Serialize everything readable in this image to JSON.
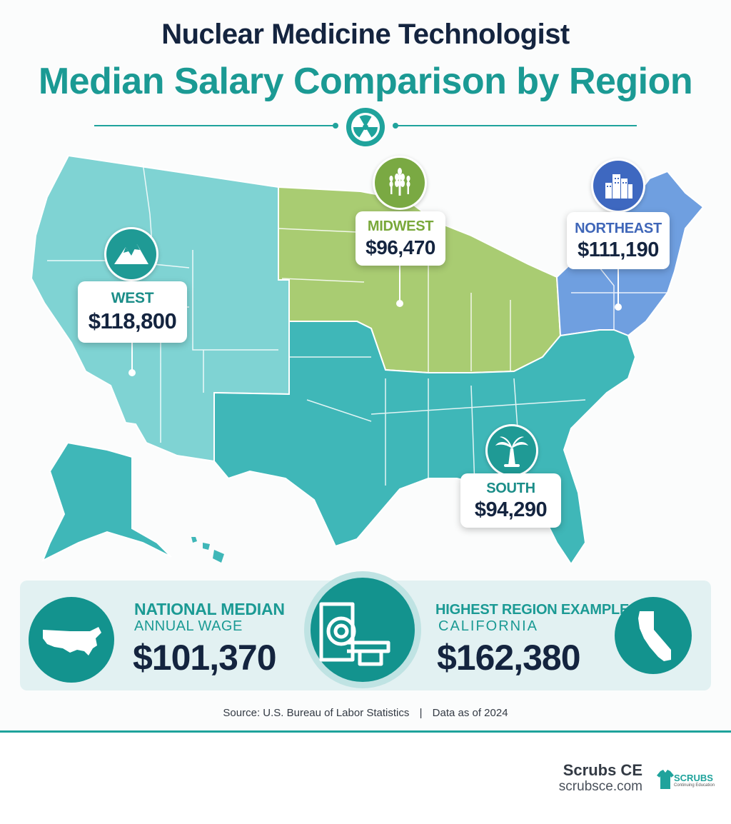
{
  "header": {
    "title_line1": "Nuclear Medicine Technologist",
    "title_line2": "Median Salary Comparison by Region"
  },
  "icons": {
    "header": "radiation-icon",
    "west": "mountain-icon",
    "midwest": "wheat-icon",
    "northeast": "city-buildings-icon",
    "south": "palm-tree-icon",
    "national": "usa-map-icon",
    "center": "mri-scanner-icon",
    "highest": "california-map-icon"
  },
  "colors": {
    "west": "#7fd3d3",
    "midwest": "#a9cc72",
    "northeast": "#6f9fe0",
    "south": "#3fb7b8",
    "accent": "#1fa39c",
    "text_dark": "#14243f"
  },
  "regions": {
    "west": {
      "name": "WEST",
      "value": "$118,800"
    },
    "midwest": {
      "name": "MIDWEST",
      "value": "$96,470"
    },
    "northeast": {
      "name": "NORTHEAST",
      "value": "$111,190"
    },
    "south": {
      "name": "SOUTH",
      "value": "$94,290"
    }
  },
  "national": {
    "label1": "NATIONAL MEDIAN",
    "label2": "ANNUAL WAGE",
    "value": "$101,370"
  },
  "highest": {
    "label1": "HIGHEST REGION EXAMPLE",
    "label2": "CALIFORNIA",
    "value": "$162,380"
  },
  "source": {
    "text": "Source: U.S. Bureau of Labor Statistics",
    "separator": "|",
    "date": "Data as of 2024"
  },
  "brand": {
    "name": "Scrubs CE",
    "url": "scrubsce.com",
    "logo_text": "SCRUBS",
    "logo_subtext": "Continuing Education"
  }
}
